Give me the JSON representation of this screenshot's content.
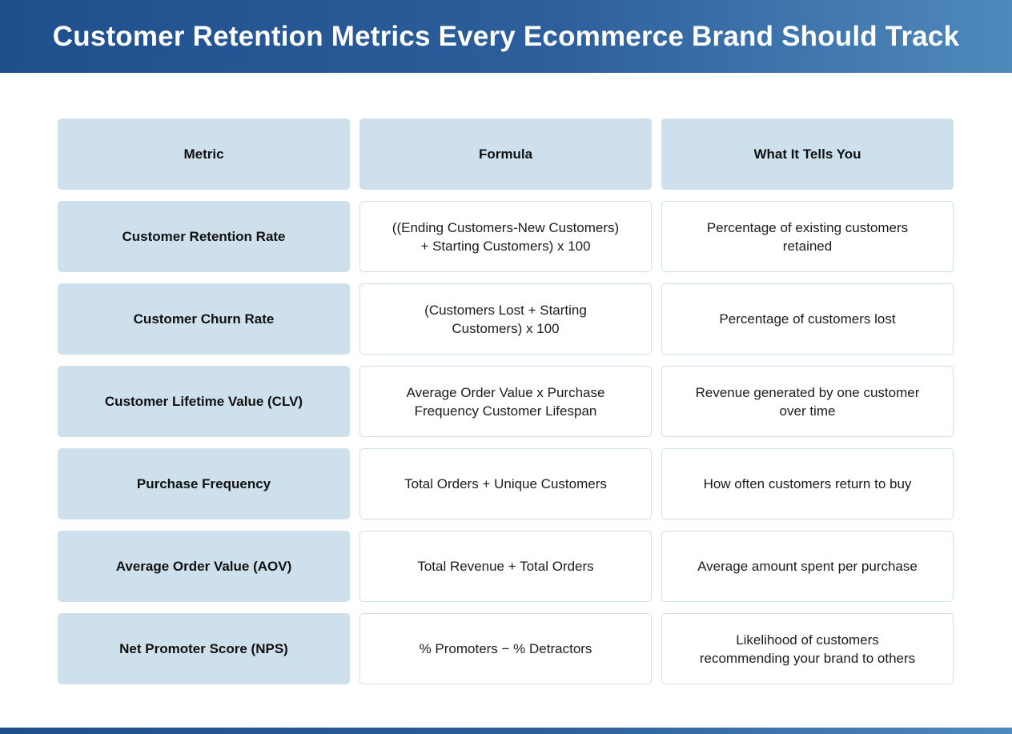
{
  "title": "Customer Retention Metrics Every Ecommerce Brand Should Track",
  "colors": {
    "header_start": "#1f4e8c",
    "header_end": "#4f89bb",
    "cell_highlight": "#cde0ec",
    "cell_border": "#cfe0ea"
  },
  "table": {
    "headers": [
      "Metric",
      "Formula",
      "What It Tells You"
    ],
    "rows": [
      {
        "metric": "Customer Retention Rate",
        "formula": "((Ending Customers-New Customers) + Starting Customers) x 100",
        "meaning": "Percentage of existing customers retained"
      },
      {
        "metric": "Customer Churn Rate",
        "formula": "(Customers Lost + Starting Customers) x 100",
        "meaning": "Percentage of customers lost"
      },
      {
        "metric": "Customer Lifetime Value (CLV)",
        "formula": "Average Order Value x Purchase Frequency Customer Lifespan",
        "meaning": "Revenue generated by one customer over time"
      },
      {
        "metric": "Purchase Frequency",
        "formula": "Total Orders + Unique Customers",
        "meaning": "How often customers return to buy"
      },
      {
        "metric": "Average Order Value (AOV)",
        "formula": "Total Revenue + Total Orders",
        "meaning": "Average amount spent per purchase"
      },
      {
        "metric": "Net Promoter Score (NPS)",
        "formula": "% Promoters − % Detractors",
        "meaning": "Likelihood of customers recommending your brand to others"
      }
    ]
  }
}
